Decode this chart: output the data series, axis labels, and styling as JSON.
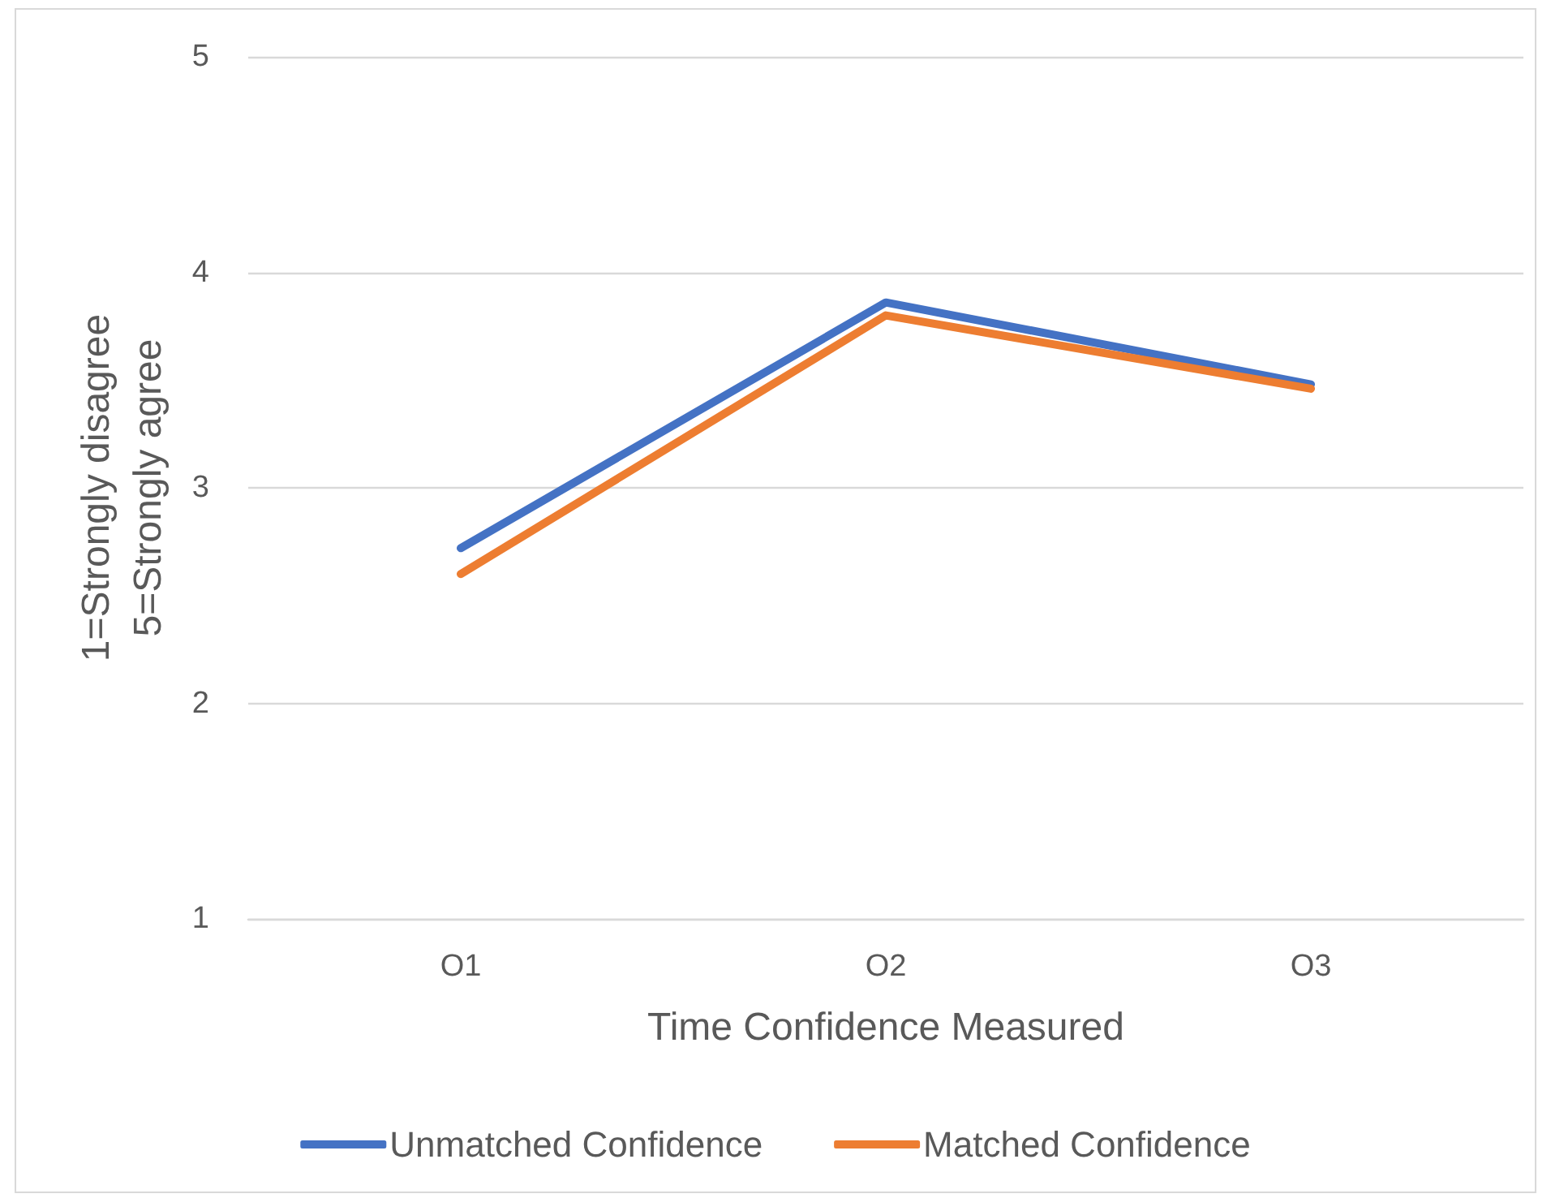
{
  "chart_data": {
    "type": "line",
    "categories": [
      "O1",
      "O2",
      "O3"
    ],
    "series": [
      {
        "name": "Unmatched Confidence",
        "color": "#4472c4",
        "values": [
          2.72,
          3.86,
          3.48
        ]
      },
      {
        "name": "Matched Confidence",
        "color": "#ed7d31",
        "values": [
          2.6,
          3.8,
          3.46
        ]
      }
    ],
    "xlabel": "Time Confidence Measured",
    "ylabel": "1=Strongly disagree\n5=Strongly agree",
    "ylim": [
      1,
      5
    ],
    "yticks": [
      1,
      2,
      3,
      4,
      5
    ],
    "grid": "y",
    "legend": "bottom",
    "marker": "none",
    "line_style": "solid"
  }
}
